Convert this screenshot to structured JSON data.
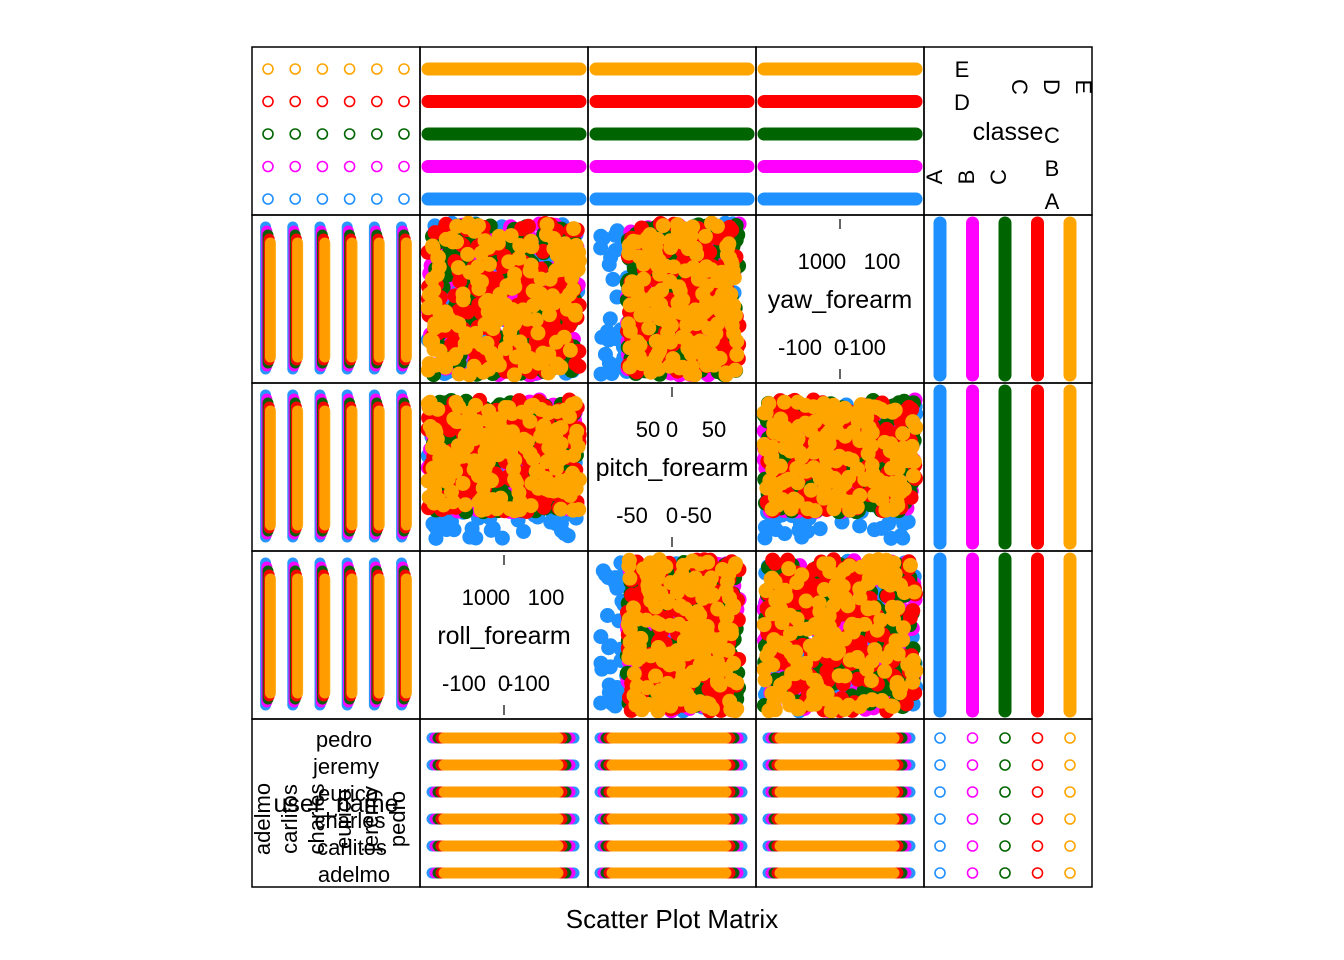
{
  "chart_data": {
    "type": "scatter",
    "plot_kind": "scatter plot matrix",
    "xlabel": "Scatter Plot Matrix",
    "variables": [
      "user_name",
      "roll_forearm",
      "pitch_forearm",
      "yaw_forearm",
      "classe"
    ],
    "variable_order_bottom_to_top": [
      "user_name",
      "roll_forearm",
      "pitch_forearm",
      "yaw_forearm",
      "classe"
    ],
    "grid": false,
    "legend": "none",
    "colors": {
      "A": "#1E90FF",
      "B": "#FF00FF",
      "C": "#006400",
      "D": "#FF0000",
      "E": "#FFA500"
    },
    "series": [
      {
        "group": "A",
        "color": "#1E90FF"
      },
      {
        "group": "B",
        "color": "#FF00FF"
      },
      {
        "group": "C",
        "color": "#006400"
      },
      {
        "group": "D",
        "color": "#FF0000"
      },
      {
        "group": "E",
        "color": "#FFA500"
      }
    ],
    "panels": {
      "user_name": {
        "categories": [
          "adelmo",
          "carlitos",
          "charles",
          "eurico",
          "jeremy",
          "pedro"
        ],
        "panel_labels": [
          "pedro",
          "jeremy",
          "eurico",
          "charles",
          "carlitos",
          "adelmo"
        ]
      },
      "roll_forearm": {
        "range": [
          -180,
          180
        ],
        "ticks_top": [
          "100",
          "0",
          "100"
        ],
        "ticks_bottom": [
          "-100",
          "0",
          "-100"
        ]
      },
      "pitch_forearm": {
        "range": [
          -80,
          90
        ],
        "ticks_top": [
          "50",
          "0",
          "50"
        ],
        "ticks_bottom": [
          "-50",
          "0",
          "-50"
        ]
      },
      "yaw_forearm": {
        "range": [
          -180,
          180
        ],
        "ticks_top": [
          "100",
          "0",
          "100"
        ],
        "ticks_bottom": [
          "-100",
          "0",
          "-100"
        ]
      },
      "classe": {
        "categories": [
          "A",
          "B",
          "C",
          "D",
          "E"
        ],
        "side_labels": [
          "E",
          "D",
          "C",
          "B",
          "A"
        ],
        "top_labels": [
          "C",
          "D",
          "E"
        ],
        "bottom_labels": [
          "A",
          "B",
          "C"
        ],
        "inner_labels": [
          "C",
          "C"
        ]
      }
    },
    "diagonal_labels": {
      "user_name": "user_name",
      "roll_forearm": "roll_forearm",
      "pitch_forearm": "pitch_forearm",
      "yaw_forearm": "yaw_forearm",
      "classe": "classe"
    }
  }
}
